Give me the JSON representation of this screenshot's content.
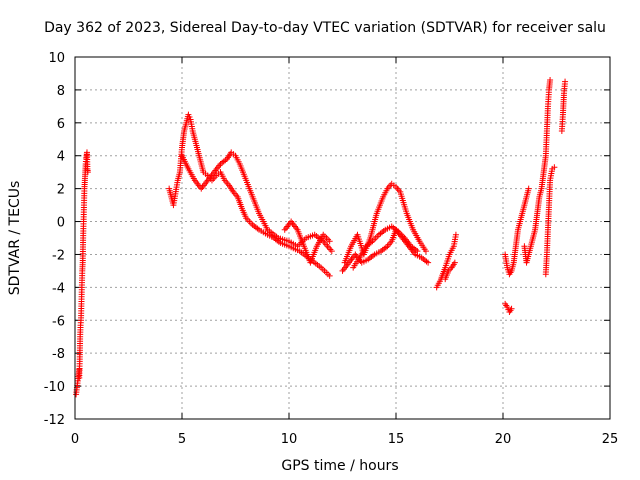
{
  "chart_data": {
    "type": "scatter",
    "title": "Day 362 of 2023, Sidereal Day-to-day VTEC variation (SDTVAR) for receiver salu",
    "xlabel": "GPS time / hours",
    "ylabel": "SDTVAR / TECUs",
    "xlim": [
      0,
      25
    ],
    "ylim": [
      -12,
      10
    ],
    "xticks": [
      0,
      5,
      10,
      15,
      20,
      25
    ],
    "xtick_labels": [
      "0",
      "5",
      "10",
      "15",
      "20",
      "25"
    ],
    "yticks": [
      -12,
      -10,
      -8,
      -6,
      -4,
      -2,
      0,
      2,
      4,
      6,
      8,
      10
    ],
    "ytick_labels": [
      "-12",
      "-10",
      "-8",
      "-6",
      "-4",
      "-2",
      "0",
      "2",
      "4",
      "6",
      "8",
      "10"
    ],
    "grid": true,
    "marker": "+",
    "color": "#ff0000",
    "series": [
      {
        "name": "salu",
        "segments": [
          {
            "x": [
              0.05,
              0.2
            ],
            "y": [
              -10.5,
              -9.0
            ]
          },
          {
            "x": [
              0.2,
              0.22,
              0.24,
              0.26,
              0.28,
              0.3,
              0.32,
              0.34,
              0.36,
              0.38,
              0.4,
              0.42,
              0.44,
              0.46,
              0.48,
              0.5,
              0.52,
              0.54,
              0.56,
              0.58,
              0.6
            ],
            "y": [
              -9.5,
              -8.5,
              -7.0,
              -6.3,
              -6.0,
              -5.0,
              -4.0,
              -3.0,
              -2.5,
              -1.0,
              0.0,
              1.0,
              2.0,
              2.5,
              3.0,
              3.5,
              3.8,
              4.0,
              4.2,
              3.2,
              3.0
            ]
          },
          {
            "x": [
              4.4,
              4.6,
              4.8,
              4.9,
              5.0,
              5.1,
              5.2,
              5.3,
              5.4,
              5.5,
              5.6,
              5.7,
              5.8,
              5.9,
              6.0,
              6.2,
              6.4,
              6.6,
              6.8,
              7.0,
              7.2,
              7.4,
              7.6,
              7.8,
              8.0,
              8.3,
              8.6,
              9.0,
              9.3,
              9.6,
              10.0,
              10.5,
              11.0,
              11.5,
              11.9
            ],
            "y": [
              2.0,
              1.0,
              2.5,
              3.0,
              4.5,
              5.5,
              6.0,
              6.5,
              6.2,
              5.5,
              5.0,
              4.5,
              4.0,
              3.5,
              3.0,
              2.8,
              2.5,
              2.8,
              3.0,
              2.5,
              2.2,
              1.8,
              1.5,
              0.8,
              0.2,
              -0.2,
              -0.5,
              -0.8,
              -1.0,
              -1.3,
              -1.5,
              -1.8,
              -2.3,
              -2.8,
              -3.3
            ]
          },
          {
            "x": [
              5.0,
              5.3,
              5.6,
              5.9,
              6.2,
              6.5,
              6.8,
              7.1,
              7.3,
              7.5,
              7.7,
              8.0,
              8.3,
              8.6,
              9.0,
              9.5,
              10.0,
              10.4,
              10.8,
              11.2,
              11.6,
              12.0
            ],
            "y": [
              4.0,
              3.2,
              2.5,
              2.0,
              2.5,
              3.0,
              3.5,
              3.8,
              4.2,
              4.0,
              3.5,
              2.5,
              1.5,
              0.5,
              -0.5,
              -1.0,
              -1.2,
              -1.5,
              -1.0,
              -0.8,
              -1.2,
              -1.8
            ]
          },
          {
            "x": [
              9.8,
              10.1,
              10.4,
              10.7,
              11.0,
              11.3,
              11.6,
              11.9
            ],
            "y": [
              -0.5,
              0.0,
              -0.5,
              -1.5,
              -2.5,
              -1.5,
              -0.8,
              -1.2
            ]
          },
          {
            "x": [
              12.5,
              12.8,
              13.1,
              13.4,
              13.7,
              14.0,
              14.3,
              14.6,
              14.8,
              15.0,
              15.3,
              15.6,
              15.9,
              16.2,
              16.5
            ],
            "y": [
              -3.0,
              -2.5,
              -2.0,
              -2.5,
              -2.3,
              -2.0,
              -1.8,
              -1.5,
              -1.2,
              -0.5,
              -1.0,
              -1.5,
              -2.0,
              -2.2,
              -2.5
            ]
          },
          {
            "x": [
              12.6,
              12.9,
              13.2,
              13.5,
              13.8,
              14.1,
              14.4,
              14.6,
              14.8,
              15.0,
              15.2,
              15.5,
              15.8,
              16.1,
              16.4
            ],
            "y": [
              -2.5,
              -1.5,
              -0.8,
              -2.0,
              -1.0,
              0.5,
              1.5,
              2.0,
              2.3,
              2.1,
              1.8,
              0.5,
              -0.5,
              -1.2,
              -1.8
            ]
          },
          {
            "x": [
              13.0,
              13.3,
              13.6,
              13.9,
              14.2,
              14.5,
              14.8,
              15.1,
              15.4,
              15.7,
              16.0
            ],
            "y": [
              -2.8,
              -2.2,
              -1.5,
              -1.2,
              -0.8,
              -0.5,
              -0.3,
              -0.6,
              -1.0,
              -1.5,
              -1.8
            ]
          },
          {
            "x": [
              16.9,
              17.1,
              17.3,
              17.5,
              17.7,
              17.8
            ],
            "y": [
              -4.0,
              -3.5,
              -2.8,
              -2.0,
              -1.5,
              -0.8
            ]
          },
          {
            "x": [
              17.3,
              17.45,
              17.6,
              17.75
            ],
            "y": [
              -3.5,
              -3.0,
              -2.8,
              -2.5
            ]
          },
          {
            "x": [
              20.1,
              20.2,
              20.3,
              20.4
            ],
            "y": [
              -5.0,
              -5.2,
              -5.5,
              -5.3
            ]
          },
          {
            "x": [
              20.1,
              20.2,
              20.3,
              20.4,
              20.5,
              20.6,
              20.7,
              20.8,
              20.9,
              21.0,
              21.1,
              21.2
            ],
            "y": [
              -2.0,
              -2.8,
              -3.2,
              -3.0,
              -2.5,
              -1.5,
              -0.5,
              0.0,
              0.5,
              1.0,
              1.5,
              2.0
            ]
          },
          {
            "x": [
              21.0,
              21.1,
              21.2,
              21.3,
              21.4,
              21.5,
              21.6,
              21.7,
              21.8,
              21.9,
              22.0,
              22.05,
              22.1,
              22.15,
              22.2
            ],
            "y": [
              -1.5,
              -2.5,
              -2.0,
              -1.5,
              -1.0,
              -0.5,
              0.5,
              1.5,
              2.0,
              3.0,
              4.0,
              5.5,
              7.0,
              8.0,
              8.6
            ]
          },
          {
            "x": [
              22.0,
              22.05,
              22.1,
              22.15,
              22.2,
              22.3,
              22.4
            ],
            "y": [
              -3.2,
              -2.0,
              -0.5,
              1.0,
              2.5,
              3.2,
              3.3
            ]
          },
          {
            "x": [
              22.75,
              22.8,
              22.85,
              22.9
            ],
            "y": [
              5.5,
              6.5,
              7.8,
              8.5
            ]
          }
        ]
      }
    ]
  }
}
